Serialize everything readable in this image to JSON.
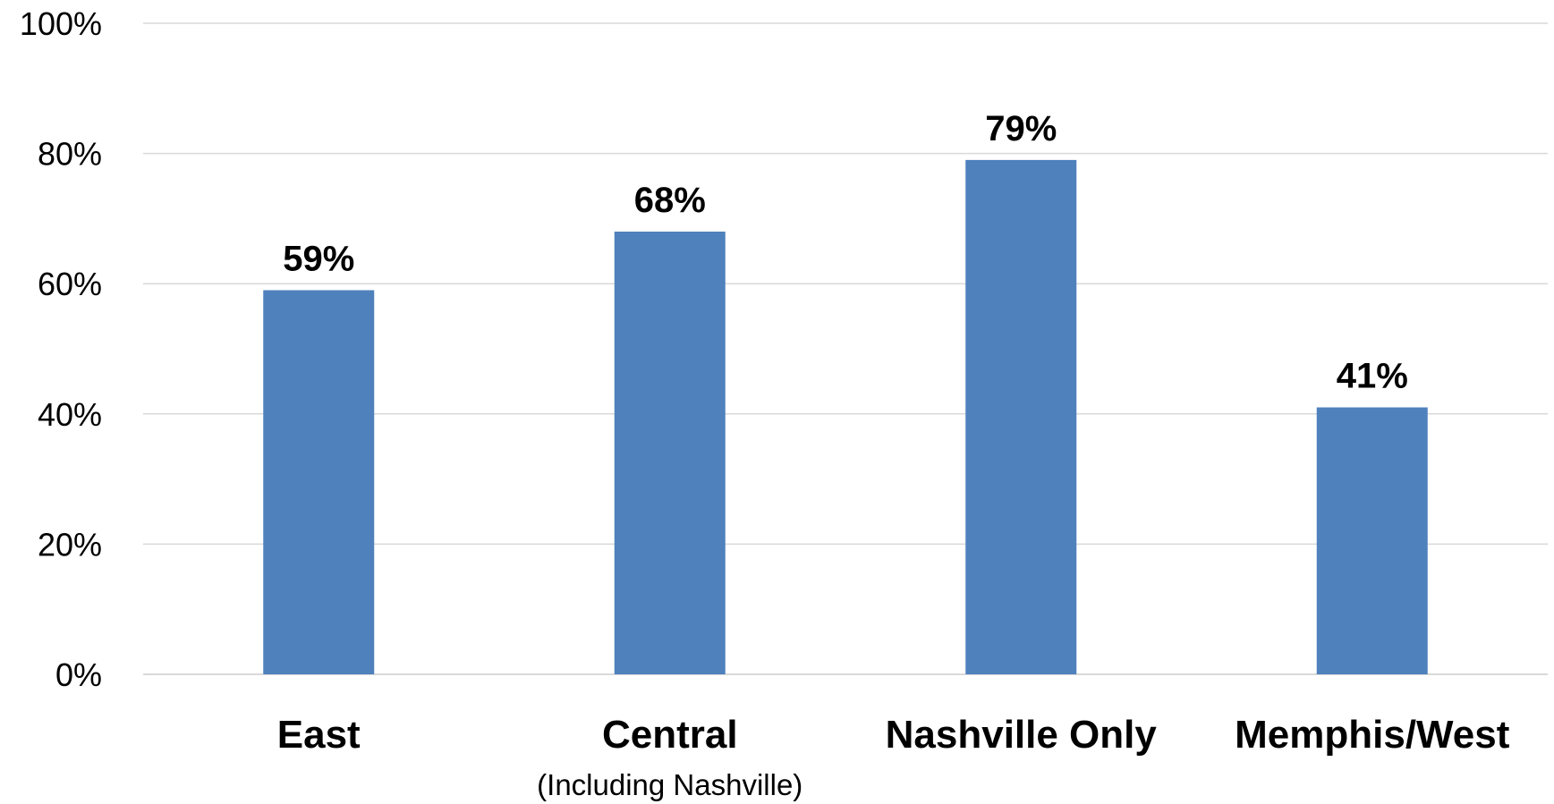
{
  "chart_data": {
    "type": "bar",
    "categories": [
      "East",
      "Central",
      "Nashville Only",
      "Memphis/West"
    ],
    "category_sublabels": [
      "",
      "(Including Nashville)",
      "",
      ""
    ],
    "values": [
      59,
      68,
      79,
      41
    ],
    "data_labels": [
      "59%",
      "68%",
      "79%",
      "41%"
    ],
    "ylim": [
      0,
      100
    ],
    "yticks": [
      0,
      20,
      40,
      60,
      80,
      100
    ],
    "ytick_labels": [
      "0%",
      "20%",
      "40%",
      "60%",
      "80%",
      "100%"
    ],
    "title": "",
    "xlabel": "",
    "ylabel": "",
    "grid": true,
    "legend": "none",
    "bar_color": "#4f81bd"
  }
}
